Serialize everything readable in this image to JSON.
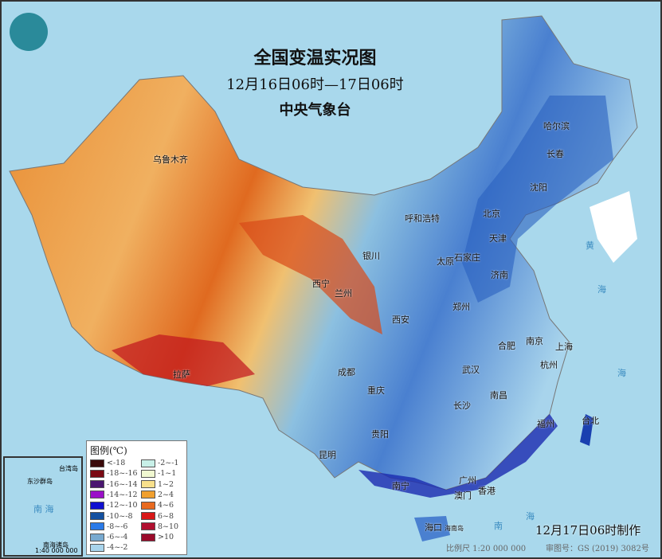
{
  "header": {
    "title": "全国变温实况图",
    "period": "12月16日06时—17日06时",
    "agency": "中央气象台"
  },
  "legend": {
    "title": "图例(℃)",
    "items": [
      {
        "label": "<-18",
        "color": "#3a0a0a"
      },
      {
        "label": "-18~-16",
        "color": "#7a0a14"
      },
      {
        "label": "-16~-14",
        "color": "#4a1670"
      },
      {
        "label": "-14~-12",
        "color": "#9a10c8"
      },
      {
        "label": "-12~-10",
        "color": "#1010d0"
      },
      {
        "label": "-10~-8",
        "color": "#1450a0"
      },
      {
        "label": "-8~-6",
        "color": "#2a7ae8"
      },
      {
        "label": "-6~-4",
        "color": "#78aad0"
      },
      {
        "label": "-4~-2",
        "color": "#a8d4ec"
      },
      {
        "label": "-2~-1",
        "color": "#c8f0e8"
      },
      {
        "label": "-1~1",
        "color": "#f0f8d0"
      },
      {
        "label": "1~2",
        "color": "#f8e08c"
      },
      {
        "label": "2~4",
        "color": "#f0a030"
      },
      {
        "label": "4~6",
        "color": "#e86a20"
      },
      {
        "label": "6~8",
        "color": "#d81818"
      },
      {
        "label": "8~10",
        "color": "#b01030"
      },
      {
        "label": ">10",
        "color": "#9a0a2a"
      }
    ]
  },
  "cities": [
    {
      "name": "乌鲁木齐"
    },
    {
      "name": "哈尔滨"
    },
    {
      "name": "长春"
    },
    {
      "name": "沈阳"
    },
    {
      "name": "呼和浩特"
    },
    {
      "name": "北京"
    },
    {
      "name": "天津"
    },
    {
      "name": "石家庄"
    },
    {
      "name": "太原"
    },
    {
      "name": "济南"
    },
    {
      "name": "银川"
    },
    {
      "name": "西宁"
    },
    {
      "name": "兰州"
    },
    {
      "name": "郑州"
    },
    {
      "name": "西安"
    },
    {
      "name": "合肥"
    },
    {
      "name": "南京"
    },
    {
      "name": "上海"
    },
    {
      "name": "杭州"
    },
    {
      "name": "武汉"
    },
    {
      "name": "成都"
    },
    {
      "name": "重庆"
    },
    {
      "name": "南昌"
    },
    {
      "name": "长沙"
    },
    {
      "name": "福州"
    },
    {
      "name": "台北"
    },
    {
      "name": "贵阳"
    },
    {
      "name": "昆明"
    },
    {
      "name": "南宁"
    },
    {
      "name": "广州"
    },
    {
      "name": "香港"
    },
    {
      "name": "澳门"
    },
    {
      "name": "海口"
    },
    {
      "name": "拉萨"
    },
    {
      "name": "海南岛"
    }
  ],
  "seas": {
    "yellow": "黄",
    "yellow2": "海",
    "east": "海",
    "south": "南",
    "south2": "海"
  },
  "inset": {
    "label1": "台湾岛",
    "label2": "东沙群岛",
    "sea": "南 海",
    "islands": "南海诸岛",
    "scale": "1:40 000 000"
  },
  "footer": {
    "made": "12月17日06时制作",
    "scale": "比例尺 1:20 000 000",
    "map_code": "审图号：GS (2019) 3082号"
  },
  "colors": {
    "sea": "#a9d8ec",
    "warm": "#e86a20",
    "cold": "#1450a0"
  }
}
